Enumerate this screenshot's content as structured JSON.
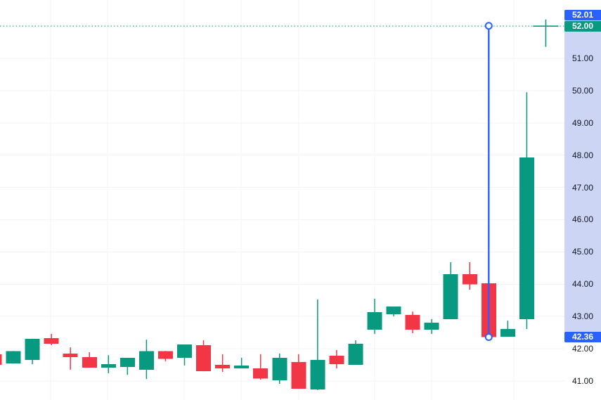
{
  "chart_data": {
    "type": "candlestick",
    "title": "",
    "xlabel": "",
    "ylabel": "",
    "ylim": [
      40.41,
      52.81
    ],
    "grid": true,
    "up_color": "#089981",
    "down_color": "#f23645",
    "candles": [
      {
        "o": 41.83,
        "h": 41.83,
        "l": 41.5,
        "c": 41.5
      },
      {
        "o": 41.54,
        "h": 41.93,
        "l": 41.54,
        "c": 41.93
      },
      {
        "o": 41.65,
        "h": 42.31,
        "l": 41.52,
        "c": 42.31
      },
      {
        "o": 42.33,
        "h": 42.46,
        "l": 42.11,
        "c": 42.15
      },
      {
        "o": 41.85,
        "h": 42.04,
        "l": 41.35,
        "c": 41.74
      },
      {
        "o": 41.74,
        "h": 41.89,
        "l": 41.41,
        "c": 41.41
      },
      {
        "o": 41.41,
        "h": 41.8,
        "l": 41.24,
        "c": 41.52
      },
      {
        "o": 41.43,
        "h": 41.72,
        "l": 41.19,
        "c": 41.72
      },
      {
        "o": 41.35,
        "h": 42.28,
        "l": 41.06,
        "c": 41.93
      },
      {
        "o": 41.93,
        "h": 41.93,
        "l": 41.61,
        "c": 41.69
      },
      {
        "o": 41.72,
        "h": 42.13,
        "l": 41.48,
        "c": 42.13
      },
      {
        "o": 42.11,
        "h": 42.26,
        "l": 41.3,
        "c": 41.3
      },
      {
        "o": 41.5,
        "h": 41.83,
        "l": 41.28,
        "c": 41.39
      },
      {
        "o": 41.39,
        "h": 41.72,
        "l": 41.39,
        "c": 41.48
      },
      {
        "o": 41.39,
        "h": 41.83,
        "l": 41.04,
        "c": 41.08
      },
      {
        "o": 41.02,
        "h": 41.85,
        "l": 40.91,
        "c": 41.72
      },
      {
        "o": 41.59,
        "h": 41.83,
        "l": 40.76,
        "c": 40.76
      },
      {
        "o": 40.74,
        "h": 43.53,
        "l": 40.72,
        "c": 41.65
      },
      {
        "o": 41.78,
        "h": 41.96,
        "l": 41.39,
        "c": 41.52
      },
      {
        "o": 41.5,
        "h": 42.26,
        "l": 41.5,
        "c": 42.15
      },
      {
        "o": 42.59,
        "h": 43.55,
        "l": 42.46,
        "c": 43.13
      },
      {
        "o": 43.07,
        "h": 43.31,
        "l": 43.0,
        "c": 43.31
      },
      {
        "o": 43.05,
        "h": 43.15,
        "l": 42.48,
        "c": 42.59
      },
      {
        "o": 42.59,
        "h": 42.92,
        "l": 42.46,
        "c": 42.81
      },
      {
        "o": 42.92,
        "h": 44.68,
        "l": 42.92,
        "c": 44.31
      },
      {
        "o": 44.31,
        "h": 44.68,
        "l": 43.83,
        "c": 44.0
      },
      {
        "o": 44.03,
        "h": 44.03,
        "l": 42.36,
        "c": 42.36
      },
      {
        "o": 42.37,
        "h": 42.87,
        "l": 42.37,
        "c": 42.61
      },
      {
        "o": 42.92,
        "h": 49.95,
        "l": 42.61,
        "c": 47.93
      }
    ]
  },
  "price_axis": {
    "ticks": [
      "51.00",
      "50.00",
      "49.00",
      "48.00",
      "47.00",
      "46.00",
      "45.00",
      "44.00",
      "43.00",
      "42.00",
      "41.00"
    ],
    "tick_prices": [
      51,
      50,
      49,
      48,
      47,
      46,
      45,
      44,
      43,
      42,
      41
    ],
    "badges": [
      {
        "label": "52.01",
        "price": 52.01,
        "color": "#2962ff"
      },
      {
        "label": "52.00",
        "price": 52.0,
        "color": "#089981"
      },
      {
        "label": "42.36",
        "price": 42.36,
        "color": "#2962ff"
      }
    ],
    "highlight_range": {
      "from_price": 52.01,
      "to_price": 42.36
    }
  },
  "drawings": {
    "vertical_line": {
      "bar_index": 26,
      "top_price": 52.01,
      "bottom_price": 42.36,
      "color": "#2962ff"
    },
    "level_line": {
      "price": 52.0,
      "color": "#089981",
      "style": "dotted"
    },
    "crosshair": {
      "bar_index": 29,
      "price": 52.0,
      "color": "#089981"
    }
  },
  "colors": {
    "up": "#089981",
    "down": "#f23645",
    "accent_blue": "#2962ff",
    "grid": "#f0f3fa",
    "axis_text": "#131722",
    "axis_highlight": "#ccd5f3",
    "background": "#ffffff"
  }
}
